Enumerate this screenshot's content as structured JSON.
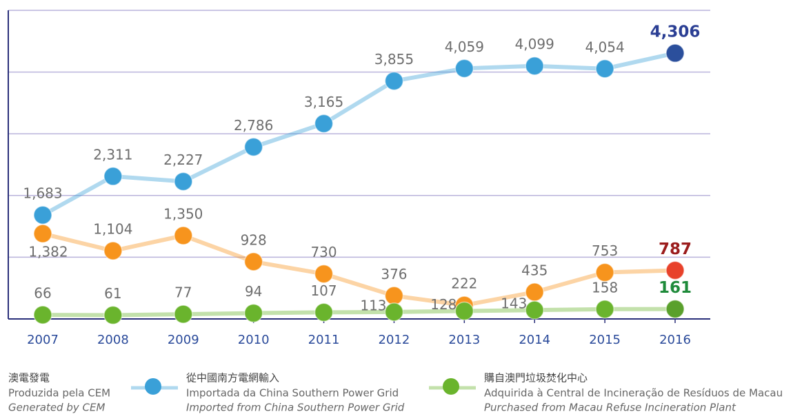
{
  "chart_data": {
    "type": "line",
    "categories": [
      "2007",
      "2008",
      "2009",
      "2010",
      "2011",
      "2012",
      "2013",
      "2014",
      "2015",
      "2016"
    ],
    "ylim": [
      0,
      5000
    ],
    "yticks": [
      0,
      1000,
      2000,
      3000,
      4000,
      5000
    ],
    "grid": true,
    "series": [
      {
        "name": "澳電發電",
        "name_pt": "Produzida pela CEM",
        "name_en": "Generated by CEM",
        "color": "#f7941d",
        "last_color": "#e8412a",
        "last_label_color": "#9b1c1c",
        "values": [
          1382,
          1104,
          1350,
          928,
          730,
          376,
          222,
          435,
          753,
          787
        ],
        "value_labels": [
          "1,382",
          "1,104",
          "1,350",
          "928",
          "730",
          "376",
          "222",
          "435",
          "753",
          "787"
        ]
      },
      {
        "name": "從中國南方電網輸入",
        "name_pt": "Importada da China Southern Power Grid",
        "name_en": "Imported from China Southern Power Grid",
        "color": "#3aa0d8",
        "last_color": "#2b4f9c",
        "last_label_color": "#2b3f94",
        "values": [
          1683,
          2311,
          2227,
          2786,
          3165,
          3855,
          4059,
          4099,
          4054,
          4306
        ],
        "value_labels": [
          "1,683",
          "2,311",
          "2,227",
          "2,786",
          "3,165",
          "3,855",
          "4,059",
          "4,099",
          "4,054",
          "4,306"
        ]
      },
      {
        "name": "購自澳門垃圾焚化中心",
        "name_pt": "Adquirida à Central de Incineração de Resíduos de Macau",
        "name_en": "Purchased from Macau Refuse Incineration Plant",
        "color": "#6ab42d",
        "last_color": "#5aa02c",
        "last_label_color": "#1e8a3a",
        "values": [
          66,
          61,
          77,
          94,
          107,
          113,
          128,
          143,
          158,
          161
        ],
        "value_labels": [
          "66",
          "61",
          "77",
          "94",
          "107",
          "113",
          "128",
          "143",
          "158",
          "161"
        ]
      }
    ]
  }
}
